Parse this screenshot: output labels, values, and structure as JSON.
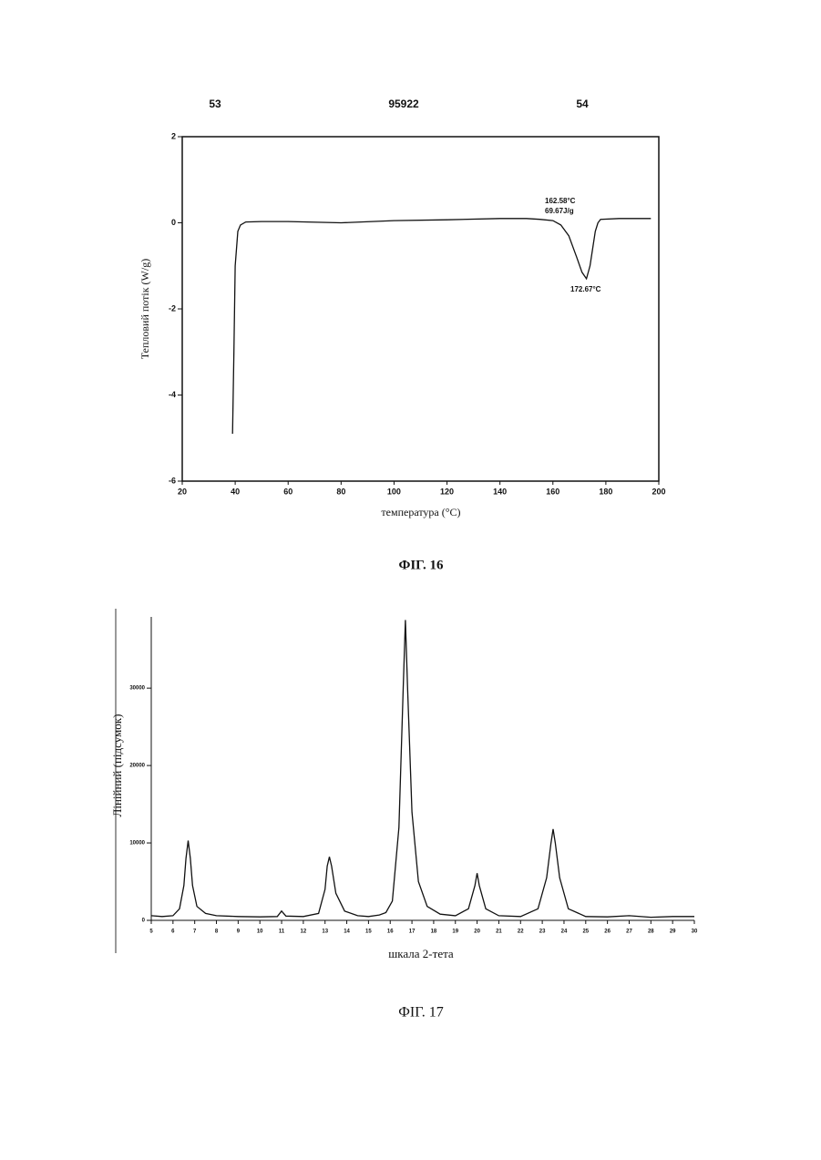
{
  "header": {
    "left": "53",
    "center": "95922",
    "right": "54"
  },
  "chart_data": [
    {
      "type": "line",
      "caption": "ФІГ. 16",
      "x_label": "температура (°C)",
      "y_label": "Тепловий потік (W/g)",
      "annotations": [
        "162.58°C",
        "69.67J/g",
        "172.67°C"
      ],
      "color": "#111111",
      "frame": true,
      "xlim": [
        20,
        200
      ],
      "xticks": [
        20,
        40,
        60,
        80,
        100,
        120,
        140,
        160,
        180,
        200
      ],
      "ylim": [
        -6,
        2
      ],
      "yticks": [
        -6,
        -4,
        -2,
        0,
        2
      ],
      "x": [
        39,
        39.5,
        40,
        41,
        42,
        44,
        50,
        60,
        80,
        100,
        120,
        140,
        150,
        155,
        160,
        163,
        166,
        169,
        171,
        172.67,
        174,
        175,
        176,
        177,
        178,
        185,
        197
      ],
      "values": [
        -4.9,
        -3,
        -1,
        -0.2,
        -0.05,
        0.02,
        0.03,
        0.03,
        0.0,
        0.05,
        0.07,
        0.1,
        0.1,
        0.08,
        0.05,
        -0.05,
        -0.3,
        -0.8,
        -1.15,
        -1.3,
        -1.0,
        -0.6,
        -0.2,
        0.0,
        0.08,
        0.1,
        0.1
      ]
    },
    {
      "type": "line",
      "caption": "ФІГ. 17",
      "x_label": "шкала 2-тета",
      "y_label": "Лінійний (підсумок)",
      "color": "#111111",
      "frame": false,
      "xlim": [
        5,
        30
      ],
      "xticks": [
        5,
        6,
        7,
        8,
        9,
        10,
        11,
        12,
        13,
        14,
        15,
        16,
        17,
        18,
        19,
        20,
        21,
        22,
        23,
        24,
        25,
        26,
        27,
        28,
        29,
        30
      ],
      "ylim": [
        0,
        39200
      ],
      "yticks": [
        0,
        10000,
        20000,
        30000
      ],
      "x": [
        5,
        5.5,
        6,
        6.3,
        6.5,
        6.6,
        6.7,
        6.8,
        6.9,
        7.1,
        7.5,
        8,
        9,
        10,
        10.8,
        11,
        11.2,
        12,
        12.7,
        13,
        13.1,
        13.2,
        13.3,
        13.5,
        13.9,
        14.5,
        15,
        15.5,
        15.8,
        16.1,
        16.4,
        16.6,
        16.7,
        16.8,
        17.0,
        17.3,
        17.7,
        18.3,
        19,
        19.6,
        19.9,
        20.0,
        20.1,
        20.4,
        21,
        22,
        22.8,
        23.2,
        23.4,
        23.5,
        23.6,
        23.8,
        24.2,
        25,
        26,
        27,
        28,
        29,
        30
      ],
      "values": [
        600,
        500,
        600,
        1500,
        4500,
        8000,
        10300,
        8000,
        4500,
        1800,
        900,
        600,
        500,
        450,
        500,
        1200,
        550,
        500,
        900,
        4000,
        7000,
        8200,
        7000,
        3500,
        1200,
        600,
        500,
        700,
        1000,
        2500,
        12000,
        30000,
        38800,
        30000,
        14000,
        5000,
        1800,
        800,
        600,
        1500,
        4500,
        6100,
        4500,
        1500,
        600,
        500,
        1500,
        5500,
        10000,
        11800,
        10000,
        5500,
        1500,
        500,
        450,
        600,
        400,
        500,
        500
      ]
    }
  ]
}
